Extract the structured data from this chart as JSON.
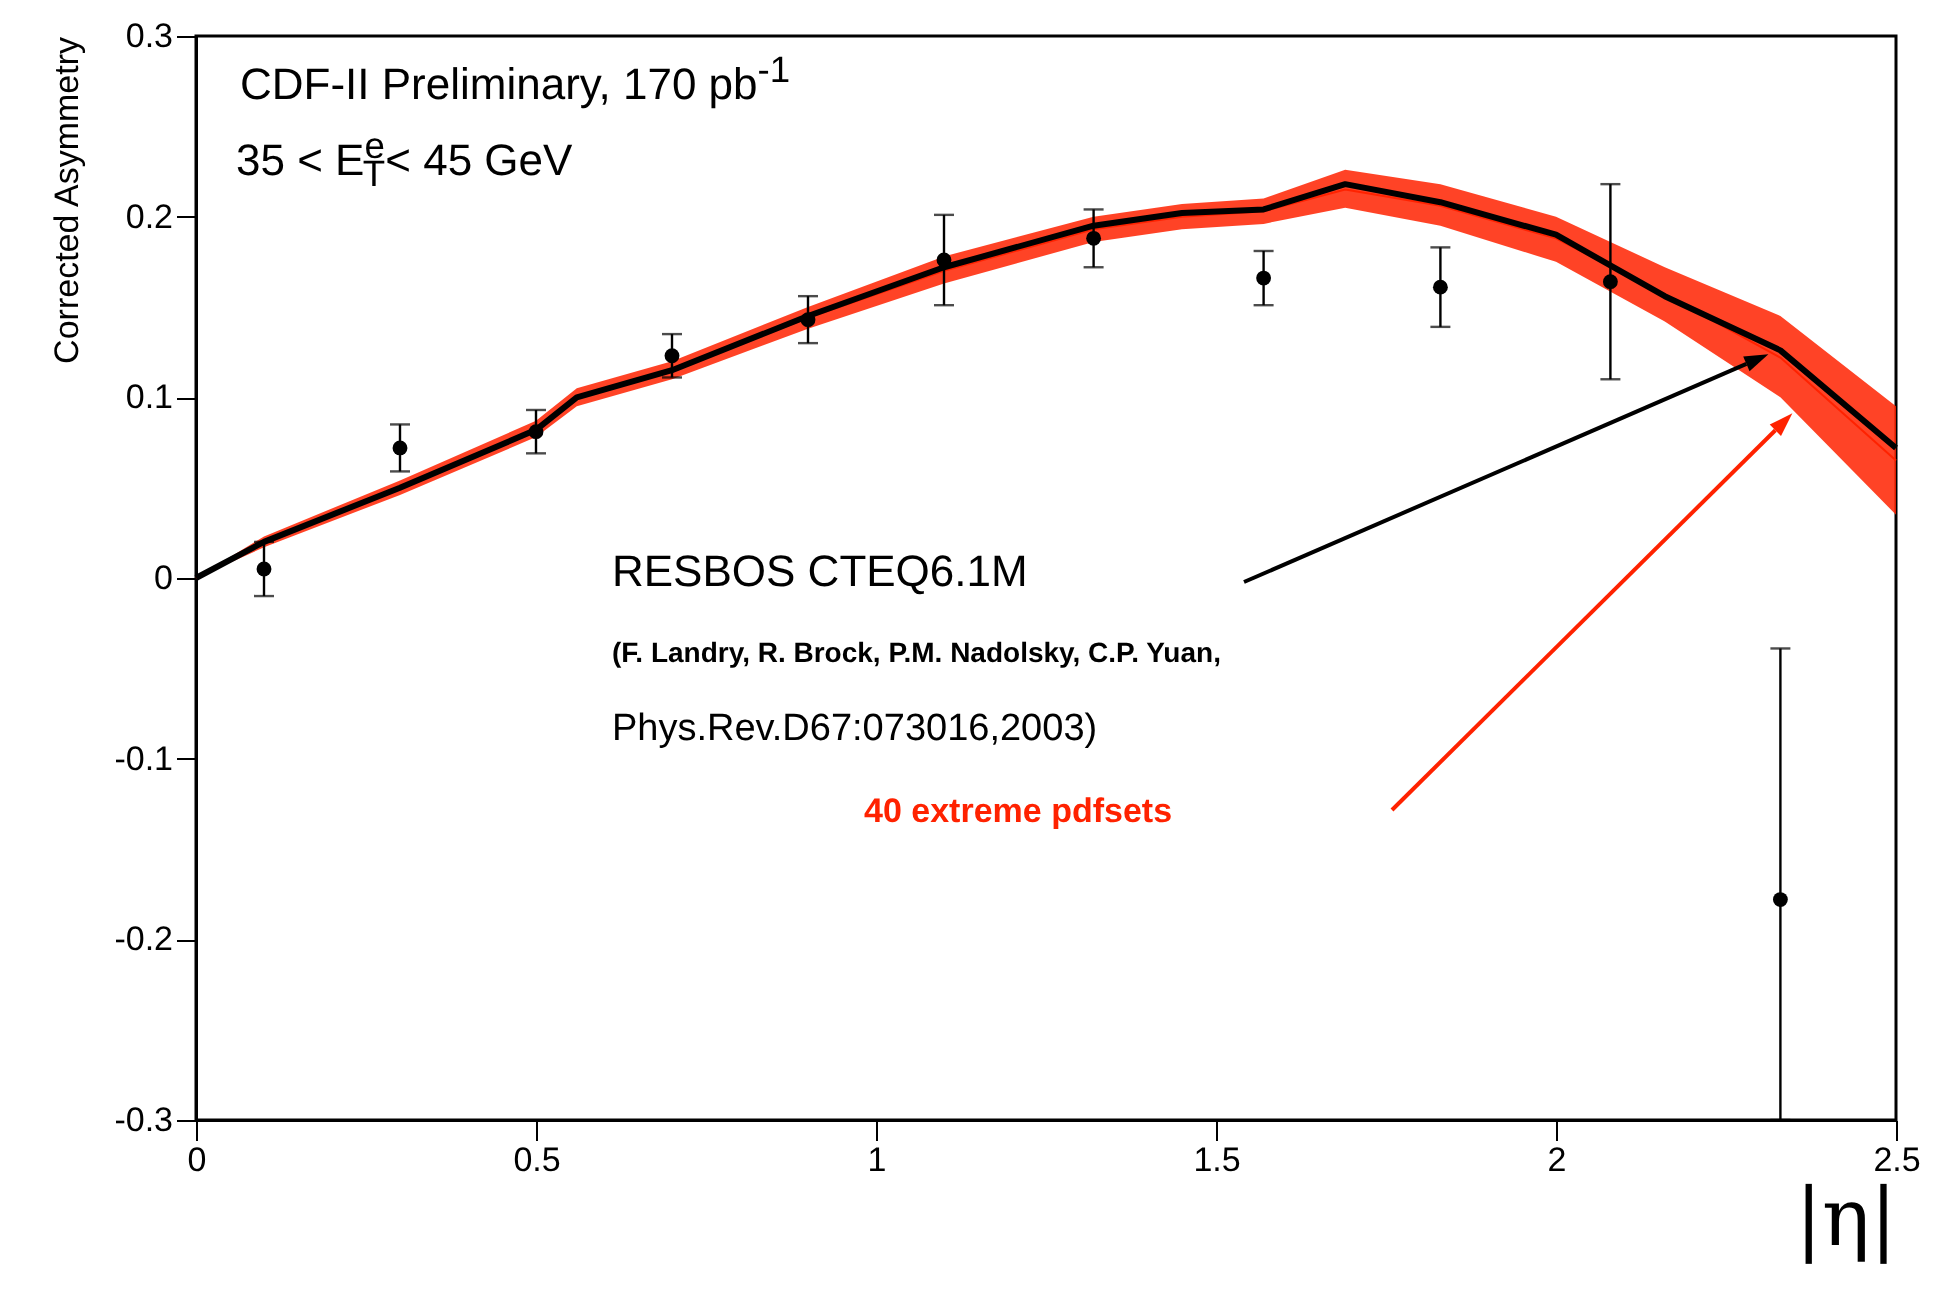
{
  "chart_data": {
    "type": "scatter",
    "title": "CDF-II Preliminary, 170 pb$^{-1}$",
    "subtitle": "35 < E$^{e}$$_{T}$< 45 GeV",
    "xlabel": "|η|",
    "ylabel": "Corrected Asymmetry",
    "xlim": [
      0,
      2.5
    ],
    "xticks": [
      0,
      0.5,
      1,
      1.5,
      2,
      2.5
    ],
    "ylim": [
      -0.3,
      0.3
    ],
    "yticks": [
      -0.3,
      -0.2,
      -0.1,
      0,
      0.1,
      0.2,
      0.3
    ],
    "grid": false,
    "marker": "circle",
    "annotations": [
      "(F. Landry, R. Brock, P.M. Nadolsky, C.P. Yuan,",
      "Phys.Rev.D67:073016,2003)"
    ],
    "series": [
      {
        "type": "line",
        "name": "40 extreme pdfsets",
        "color": "#ff2200",
        "marker": "none",
        "x": [
          0,
          0.1,
          0.3,
          0.5,
          0.56,
          0.7,
          0.9,
          1.1,
          1.32,
          1.45,
          1.57,
          1.69,
          1.83,
          2.0,
          2.16,
          2.33,
          2.5
        ],
        "values": [
          0,
          0.02,
          0.05,
          0.082,
          0.1,
          0.115,
          0.144,
          0.17,
          0.193,
          0.2,
          0.203,
          0.215,
          0.206,
          0.188,
          0.157,
          0.122,
          0.065
        ],
        "lower": [
          0,
          0.017,
          0.046,
          0.078,
          0.095,
          0.11,
          0.138,
          0.163,
          0.186,
          0.193,
          0.196,
          0.205,
          0.195,
          0.175,
          0.142,
          0.1,
          0.035
        ],
        "upper": [
          0,
          0.023,
          0.054,
          0.087,
          0.105,
          0.12,
          0.15,
          0.178,
          0.2,
          0.207,
          0.21,
          0.226,
          0.218,
          0.2,
          0.172,
          0.145,
          0.095
        ]
      },
      {
        "type": "line",
        "name": "RESBOS CTEQ6.1M",
        "color": "#000000",
        "marker": "none",
        "x": [
          0,
          0.1,
          0.3,
          0.5,
          0.56,
          0.7,
          0.9,
          1.1,
          1.32,
          1.45,
          1.57,
          1.69,
          1.83,
          2.0,
          2.16,
          2.33,
          2.5
        ],
        "values": [
          0,
          0.02,
          0.05,
          0.082,
          0.1,
          0.115,
          0.145,
          0.172,
          0.195,
          0.202,
          0.204,
          0.218,
          0.208,
          0.19,
          0.156,
          0.126,
          0.072
        ]
      },
      {
        "color": "#000000",
        "x": [
          0.1,
          0.3,
          0.5,
          0.7,
          0.9,
          1.1,
          1.32,
          1.57,
          1.83,
          2.08,
          2.33
        ],
        "values": [
          0.005,
          0.072,
          0.081,
          0.123,
          0.143,
          0.176,
          0.188,
          0.166,
          0.161,
          0.164,
          -0.178
        ],
        "errors": [
          0.015,
          0.013,
          0.012,
          0.012,
          0.013,
          0.025,
          0.016,
          0.015,
          0.022,
          0.054,
          [
            -0.3,
            -0.039
          ]
        ]
      }
    ]
  }
}
